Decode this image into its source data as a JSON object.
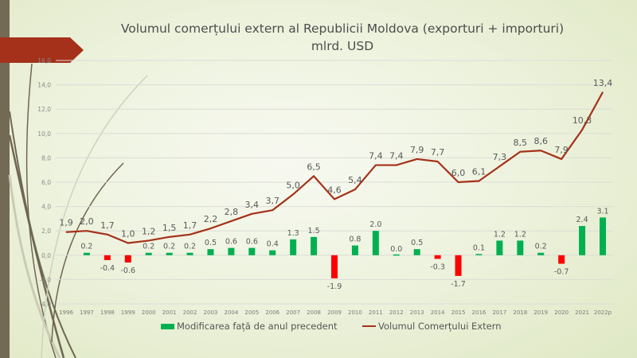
{
  "slide": {
    "title_line1": "Volumul comerțului extern al Republicii Moldova (exporturi + importuri)",
    "title_line2": "mlrd. USD",
    "colors": {
      "positive_bar": "#00b050",
      "negative_bar": "#ff0000",
      "line": "#a5311a",
      "banner": "#a5311a",
      "left_bar": "#726a55"
    }
  },
  "chart_data": {
    "type": "bar",
    "title": "Volumul comerțului extern al Republicii Moldova (exporturi + importuri), mlrd. USD",
    "xlabel": "",
    "ylabel": "",
    "ylim": [
      -4.0,
      16.0
    ],
    "yticks": [
      "16,0",
      "14,0",
      "12,0",
      "10,0",
      "8,0",
      "6,0",
      "4,0",
      "2,0",
      "0,0",
      "-2,0",
      "-4,0"
    ],
    "ytick_values": [
      16,
      14,
      12,
      10,
      8,
      6,
      4,
      2,
      0,
      -2,
      -4
    ],
    "grid": true,
    "legend_position": "bottom",
    "categories": [
      "1996",
      "1997",
      "1998",
      "1999",
      "2000",
      "2001",
      "2002",
      "2003",
      "2004",
      "2005",
      "2006",
      "2007",
      "2008",
      "2009",
      "2010",
      "2011",
      "2012",
      "2013",
      "2014",
      "2015",
      "2016",
      "2017",
      "2018",
      "2019",
      "2020",
      "2021",
      "2022p"
    ],
    "series": [
      {
        "name": "Modificarea față de anul precedent",
        "type": "bar",
        "values": [
          null,
          0.2,
          -0.4,
          -0.6,
          0.2,
          0.2,
          0.2,
          0.5,
          0.6,
          0.6,
          0.4,
          1.3,
          1.5,
          -1.9,
          0.8,
          2.0,
          0.0,
          0.5,
          -0.3,
          -1.7,
          0.1,
          1.2,
          1.2,
          0.2,
          -0.7,
          2.4,
          3.1
        ],
        "labels": [
          "",
          "0.2",
          "-0.4",
          "-0.6",
          "0.2",
          "0.2",
          "0.2",
          "0.5",
          "0.6",
          "0.6",
          "0.4",
          "1.3",
          "1.5",
          "-1.9",
          "0.8",
          "2.0",
          "0.0",
          "0.5",
          "-0.3",
          "-1.7",
          "0.1",
          "1.2",
          "1.2",
          "0.2",
          "-0.7",
          "2.4",
          "3.1"
        ]
      },
      {
        "name": "Volumul Comerțului Extern",
        "type": "line",
        "values": [
          1.9,
          2.0,
          1.7,
          1.0,
          1.2,
          1.5,
          1.7,
          2.2,
          2.8,
          3.4,
          3.7,
          5.0,
          6.5,
          4.6,
          5.4,
          7.4,
          7.4,
          7.9,
          7.7,
          6.0,
          6.1,
          7.3,
          8.5,
          8.6,
          7.9,
          10.3,
          13.4
        ],
        "labels": [
          "1,9",
          "2,0",
          "1,7",
          "1,0",
          "1,2",
          "1,5",
          "1,7",
          "2,2",
          "2,8",
          "3,4",
          "3,7",
          "5,0",
          "6,5",
          "4,6",
          "5,4",
          "7,4",
          "7,4",
          "7,9",
          "7,7",
          "6,0",
          "6,1",
          "7,3",
          "8,5",
          "8,6",
          "7,9",
          "10,3",
          "13,4"
        ]
      }
    ]
  }
}
